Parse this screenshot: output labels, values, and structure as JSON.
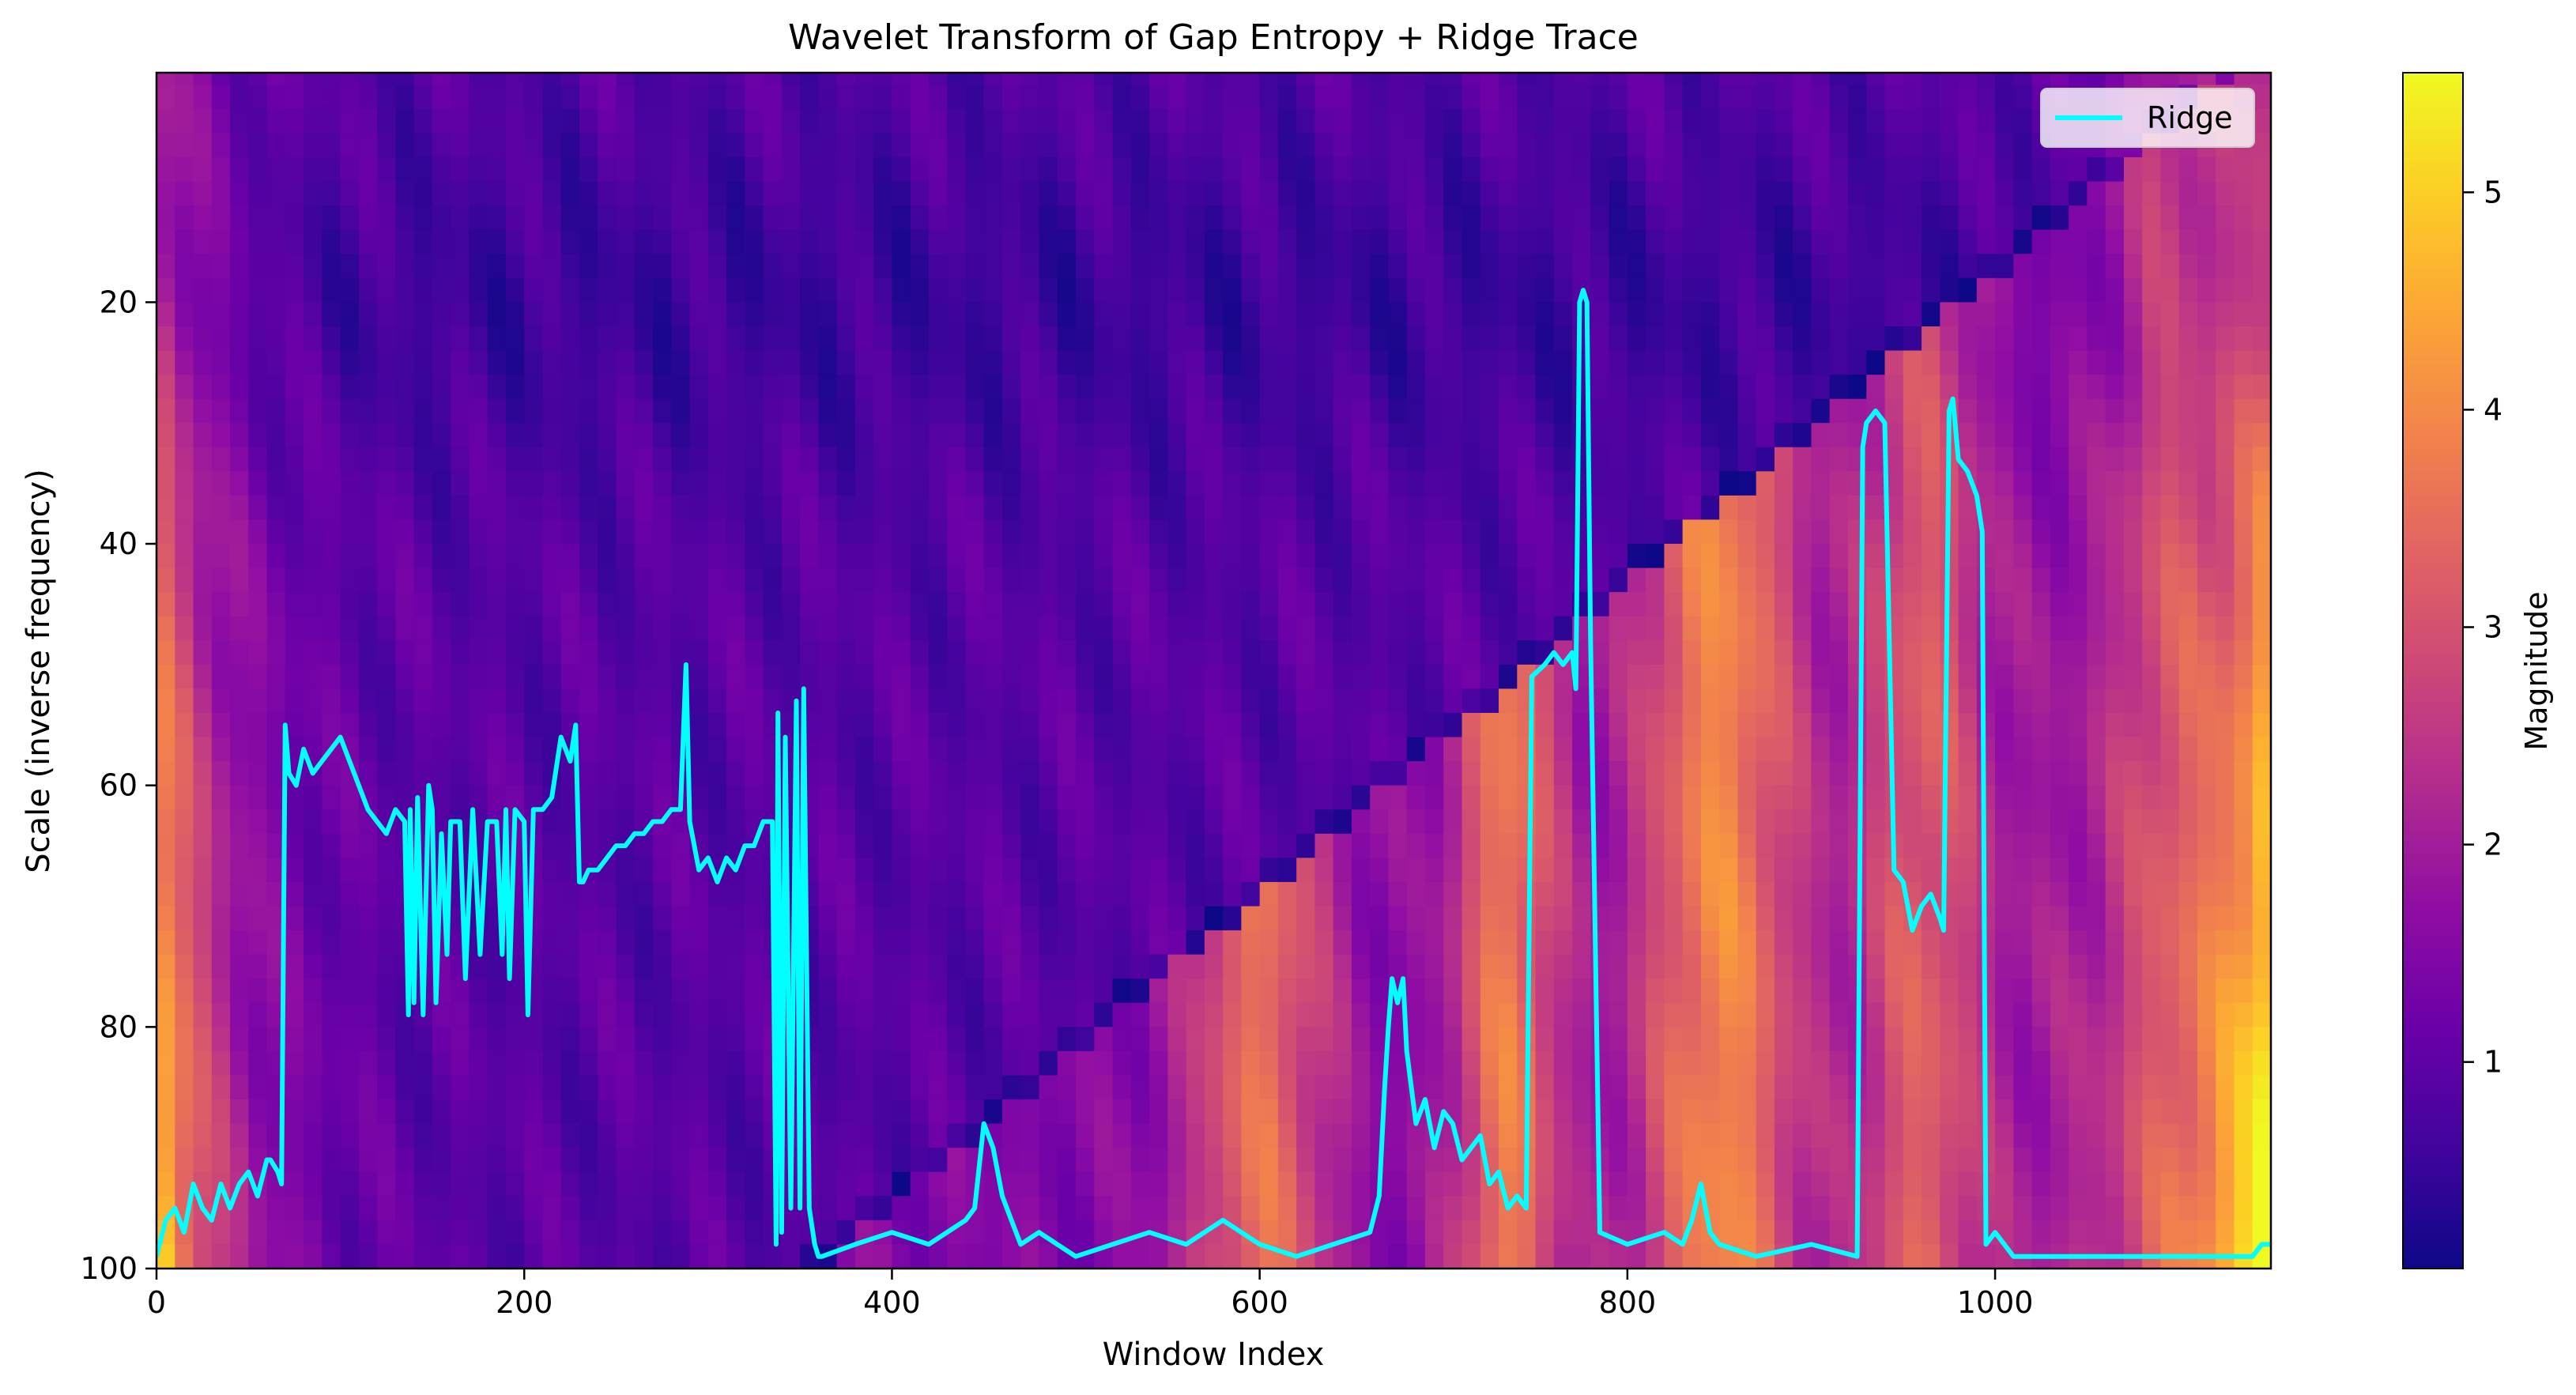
{
  "chart_data": {
    "type": "heatmap",
    "title": "Wavelet Transform of Gap Entropy + Ridge Trace",
    "xlabel": "Window Index",
    "ylabel": "Scale (inverse frequency)",
    "xlim": [
      0,
      1150
    ],
    "ylim": [
      100,
      1
    ],
    "y_inverted": true,
    "x_ticks": [
      0,
      200,
      400,
      600,
      800,
      1000
    ],
    "y_ticks": [
      20,
      40,
      60,
      80,
      100
    ],
    "colormap": "plasma",
    "colorbar": {
      "label": "Magnitude",
      "range": [
        0.05,
        5.55
      ],
      "ticks": [
        1,
        2,
        3,
        4,
        5
      ]
    },
    "legend": {
      "position": "top-right",
      "entries": [
        "Ridge"
      ]
    },
    "heatmap_features": {
      "left_edge_high_magnitude": 5.0,
      "right_edge_high_magnitude": 5.2,
      "cone_of_influence": "diagonal from (360, 100) to (1060, 10)",
      "warm_bands_under_diagonal": [
        {
          "x_center": 600,
          "magnitude": 3.0
        },
        {
          "x_center": 730,
          "magnitude": 3.2
        },
        {
          "x_center": 850,
          "magnitude": 3.5
        }
      ],
      "background_magnitude": 1.0
    },
    "series": [
      {
        "name": "Ridge",
        "color": "#00ffff",
        "x": [
          0,
          5,
          10,
          15,
          20,
          25,
          30,
          35,
          40,
          45,
          50,
          55,
          60,
          62,
          66,
          68,
          70,
          72,
          76,
          80,
          85,
          90,
          95,
          100,
          105,
          110,
          115,
          120,
          125,
          130,
          135,
          137,
          138,
          140,
          142,
          145,
          148,
          150,
          152,
          155,
          158,
          160,
          165,
          168,
          172,
          176,
          180,
          185,
          188,
          190,
          192,
          195,
          200,
          202,
          205,
          210,
          215,
          220,
          225,
          228,
          230,
          232,
          235,
          240,
          245,
          250,
          255,
          260,
          265,
          270,
          275,
          280,
          283,
          285,
          288,
          290,
          295,
          300,
          305,
          310,
          315,
          320,
          325,
          330,
          335,
          337,
          338,
          340,
          342,
          345,
          348,
          350,
          352,
          355,
          358,
          360,
          362,
          380,
          400,
          420,
          440,
          445,
          450,
          455,
          460,
          465,
          470,
          480,
          500,
          520,
          540,
          560,
          580,
          600,
          620,
          640,
          660,
          665,
          668,
          670,
          672,
          675,
          678,
          680,
          685,
          690,
          695,
          700,
          705,
          710,
          715,
          720,
          725,
          730,
          735,
          740,
          745,
          748,
          755,
          760,
          765,
          770,
          772,
          774,
          776,
          778,
          780,
          785,
          800,
          820,
          830,
          835,
          840,
          845,
          850,
          870,
          900,
          925,
          928,
          930,
          935,
          940,
          945,
          950,
          955,
          960,
          965,
          970,
          972,
          975,
          977,
          980,
          985,
          990,
          993,
          995,
          1000,
          1010,
          1050,
          1100,
          1140,
          1145,
          1150
        ],
        "y": [
          99,
          96,
          95,
          97,
          93,
          95,
          96,
          93,
          95,
          93,
          92,
          94,
          91,
          91,
          92,
          93,
          55,
          59,
          60,
          57,
          59,
          58,
          57,
          56,
          58,
          60,
          62,
          63,
          64,
          62,
          63,
          79,
          62,
          78,
          61,
          79,
          60,
          62,
          78,
          64,
          74,
          63,
          63,
          76,
          62,
          74,
          63,
          63,
          74,
          62,
          76,
          62,
          63,
          79,
          62,
          62,
          61,
          56,
          58,
          55,
          68,
          68,
          67,
          67,
          66,
          65,
          65,
          64,
          64,
          63,
          63,
          62,
          62,
          62,
          50,
          63,
          67,
          66,
          68,
          66,
          67,
          65,
          65,
          63,
          63,
          98,
          54,
          97,
          56,
          95,
          53,
          95,
          52,
          95,
          98,
          99,
          99,
          98,
          97,
          98,
          96,
          95,
          88,
          90,
          94,
          96,
          98,
          97,
          99,
          98,
          97,
          98,
          96,
          98,
          99,
          98,
          97,
          94,
          85,
          80,
          76,
          78,
          76,
          82,
          88,
          86,
          90,
          87,
          88,
          91,
          90,
          89,
          93,
          92,
          95,
          94,
          95,
          51,
          50,
          49,
          50,
          49,
          52,
          20,
          19,
          20,
          48,
          97,
          98,
          97,
          98,
          96,
          93,
          97,
          98,
          99,
          98,
          99,
          32,
          30,
          29,
          30,
          67,
          68,
          72,
          70,
          69,
          71,
          72,
          29,
          28,
          33,
          34,
          36,
          39,
          98,
          97,
          99,
          99,
          99,
          99,
          98,
          98
        ]
      }
    ]
  }
}
